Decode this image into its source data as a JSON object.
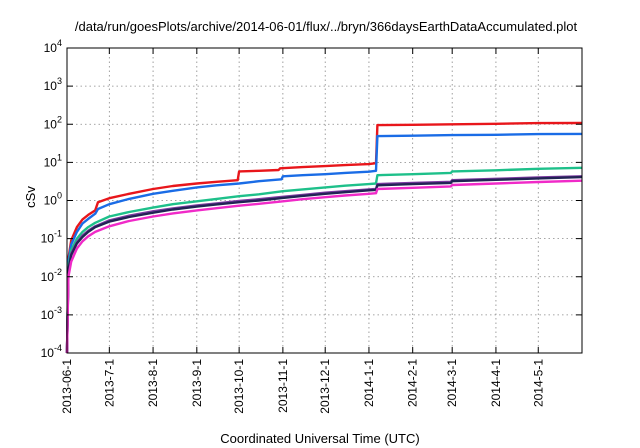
{
  "chart_data": {
    "type": "line",
    "title": "/data/run/goesPlots/archive/2014-06-01/flux/../bryn/366daysEarthDataAccumulated.plot",
    "xlabel": "Coordinated Universal Time (UTC)",
    "ylabel": "cSv",
    "y_scale": "log",
    "ylim": [
      0.0001,
      10000
    ],
    "xlim": [
      "2013-06-01",
      "2014-06-01"
    ],
    "grid": true,
    "legend": "none",
    "x_ticks": [
      "2013-06-1",
      "2013-7-1",
      "2013-8-1",
      "2013-9-1",
      "2013-10-1",
      "2013-11-1",
      "2013-12-1",
      "2014-1-1",
      "2014-2-1",
      "2014-3-1",
      "2014-4-1",
      "2014-5-1"
    ],
    "x_tick_dates": [
      "2013-06-01",
      "2013-07-01",
      "2013-08-01",
      "2013-09-01",
      "2013-10-01",
      "2013-11-01",
      "2013-12-01",
      "2014-01-01",
      "2014-02-01",
      "2014-03-01",
      "2014-04-01",
      "2014-05-01"
    ],
    "y_ticks": [
      {
        "value": 0.0001,
        "base": "10",
        "exp": "-4"
      },
      {
        "value": 0.001,
        "base": "10",
        "exp": "-3"
      },
      {
        "value": 0.01,
        "base": "10",
        "exp": "-2"
      },
      {
        "value": 0.1,
        "base": "10",
        "exp": "-1"
      },
      {
        "value": 1,
        "base": "10",
        "exp": "0"
      },
      {
        "value": 10,
        "base": "10",
        "exp": "1"
      },
      {
        "value": 100,
        "base": "10",
        "exp": "2"
      },
      {
        "value": 1000,
        "base": "10",
        "exp": "3"
      },
      {
        "value": 10000,
        "base": "10",
        "exp": "4"
      }
    ],
    "series": [
      {
        "color": "#e8161b",
        "points": [
          [
            "2013-06-01",
            0.0001
          ],
          [
            "2013-06-02",
            0.03
          ],
          [
            "2013-06-04",
            0.09
          ],
          [
            "2013-06-08",
            0.2
          ],
          [
            "2013-06-12",
            0.32
          ],
          [
            "2013-06-16",
            0.42
          ],
          [
            "2013-06-21",
            0.55
          ],
          [
            "2013-06-23",
            0.9
          ],
          [
            "2013-07-01",
            1.15
          ],
          [
            "2013-07-15",
            1.5
          ],
          [
            "2013-08-01",
            2.0
          ],
          [
            "2013-08-15",
            2.4
          ],
          [
            "2013-09-01",
            2.8
          ],
          [
            "2013-09-15",
            3.1
          ],
          [
            "2013-09-30",
            3.4
          ],
          [
            "2013-10-01",
            5.8
          ],
          [
            "2013-10-15",
            6.0
          ],
          [
            "2013-10-29",
            6.3
          ],
          [
            "2013-10-30",
            7.0
          ],
          [
            "2013-11-15",
            7.5
          ],
          [
            "2013-12-01",
            8.0
          ],
          [
            "2013-12-15",
            8.5
          ],
          [
            "2014-01-01",
            9.0
          ],
          [
            "2014-01-06",
            9.5
          ],
          [
            "2014-01-07",
            95
          ],
          [
            "2014-02-01",
            97
          ],
          [
            "2014-03-01",
            100
          ],
          [
            "2014-04-01",
            103
          ],
          [
            "2014-05-01",
            107
          ],
          [
            "2014-06-01",
            108
          ]
        ]
      },
      {
        "color": "#1a6ce6",
        "points": [
          [
            "2013-06-01",
            0.0001
          ],
          [
            "2013-06-02",
            0.025
          ],
          [
            "2013-06-04",
            0.07
          ],
          [
            "2013-06-08",
            0.15
          ],
          [
            "2013-06-12",
            0.25
          ],
          [
            "2013-06-16",
            0.33
          ],
          [
            "2013-06-21",
            0.45
          ],
          [
            "2013-06-23",
            0.6
          ],
          [
            "2013-07-01",
            0.8
          ],
          [
            "2013-07-15",
            1.1
          ],
          [
            "2013-08-01",
            1.5
          ],
          [
            "2013-08-15",
            1.8
          ],
          [
            "2013-09-01",
            2.2
          ],
          [
            "2013-09-15",
            2.5
          ],
          [
            "2013-10-01",
            2.8
          ],
          [
            "2013-10-15",
            3.2
          ],
          [
            "2013-10-31",
            3.6
          ],
          [
            "2013-11-01",
            4.3
          ],
          [
            "2013-11-15",
            4.6
          ],
          [
            "2013-12-01",
            4.9
          ],
          [
            "2013-12-15",
            5.3
          ],
          [
            "2014-01-01",
            5.7
          ],
          [
            "2014-01-06",
            6.0
          ],
          [
            "2014-01-07",
            49
          ],
          [
            "2014-02-01",
            50
          ],
          [
            "2014-03-01",
            52
          ],
          [
            "2014-04-01",
            53
          ],
          [
            "2014-05-01",
            55
          ],
          [
            "2014-06-01",
            56
          ]
        ]
      },
      {
        "color": "#1ec08a",
        "points": [
          [
            "2013-06-01",
            0.0001
          ],
          [
            "2013-06-02",
            0.02
          ],
          [
            "2013-06-04",
            0.05
          ],
          [
            "2013-06-08",
            0.1
          ],
          [
            "2013-06-12",
            0.15
          ],
          [
            "2013-06-16",
            0.2
          ],
          [
            "2013-06-21",
            0.26
          ],
          [
            "2013-07-01",
            0.38
          ],
          [
            "2013-07-15",
            0.5
          ],
          [
            "2013-08-01",
            0.65
          ],
          [
            "2013-08-15",
            0.8
          ],
          [
            "2013-09-01",
            0.95
          ],
          [
            "2013-09-15",
            1.1
          ],
          [
            "2013-10-01",
            1.3
          ],
          [
            "2013-10-15",
            1.45
          ],
          [
            "2013-11-01",
            1.75
          ],
          [
            "2013-11-15",
            1.95
          ],
          [
            "2013-12-01",
            2.2
          ],
          [
            "2013-12-15",
            2.45
          ],
          [
            "2014-01-01",
            2.7
          ],
          [
            "2014-01-06",
            2.8
          ],
          [
            "2014-01-07",
            4.6
          ],
          [
            "2014-02-01",
            4.9
          ],
          [
            "2014-02-28",
            5.3
          ],
          [
            "2014-03-01",
            5.8
          ],
          [
            "2014-04-01",
            6.2
          ],
          [
            "2014-05-01",
            6.8
          ],
          [
            "2014-06-01",
            7.2
          ]
        ]
      },
      {
        "color": "#7b3aa0",
        "points": [
          [
            "2013-06-01",
            0.0001
          ],
          [
            "2013-06-02",
            0.016
          ],
          [
            "2013-06-04",
            0.04
          ],
          [
            "2013-06-08",
            0.08
          ],
          [
            "2013-06-12",
            0.12
          ],
          [
            "2013-06-16",
            0.16
          ],
          [
            "2013-06-21",
            0.21
          ],
          [
            "2013-07-01",
            0.3
          ],
          [
            "2013-07-15",
            0.4
          ],
          [
            "2013-08-01",
            0.52
          ],
          [
            "2013-08-15",
            0.62
          ],
          [
            "2013-09-01",
            0.74
          ],
          [
            "2013-09-15",
            0.84
          ],
          [
            "2013-10-01",
            0.97
          ],
          [
            "2013-10-15",
            1.08
          ],
          [
            "2013-11-01",
            1.25
          ],
          [
            "2013-11-15",
            1.4
          ],
          [
            "2013-12-01",
            1.6
          ],
          [
            "2013-12-15",
            1.75
          ],
          [
            "2014-01-01",
            1.95
          ],
          [
            "2014-01-06",
            2.0
          ],
          [
            "2014-01-07",
            2.7
          ],
          [
            "2014-02-01",
            2.9
          ],
          [
            "2014-02-28",
            3.1
          ],
          [
            "2014-03-01",
            3.4
          ],
          [
            "2014-04-01",
            3.7
          ],
          [
            "2014-05-01",
            4.0
          ],
          [
            "2014-06-01",
            4.3
          ]
        ]
      },
      {
        "color": "#222255",
        "points": [
          [
            "2013-06-01",
            0.0001
          ],
          [
            "2013-06-02",
            0.015
          ],
          [
            "2013-06-04",
            0.037
          ],
          [
            "2013-06-08",
            0.075
          ],
          [
            "2013-06-12",
            0.11
          ],
          [
            "2013-06-16",
            0.15
          ],
          [
            "2013-06-21",
            0.2
          ],
          [
            "2013-07-01",
            0.28
          ],
          [
            "2013-07-15",
            0.37
          ],
          [
            "2013-08-01",
            0.48
          ],
          [
            "2013-08-15",
            0.58
          ],
          [
            "2013-09-01",
            0.69
          ],
          [
            "2013-09-15",
            0.79
          ],
          [
            "2013-10-01",
            0.9
          ],
          [
            "2013-10-15",
            1.0
          ],
          [
            "2013-11-01",
            1.17
          ],
          [
            "2013-11-15",
            1.32
          ],
          [
            "2013-12-01",
            1.5
          ],
          [
            "2013-12-15",
            1.65
          ],
          [
            "2014-01-01",
            1.85
          ],
          [
            "2014-01-06",
            1.9
          ],
          [
            "2014-01-07",
            2.5
          ],
          [
            "2014-02-01",
            2.7
          ],
          [
            "2014-02-28",
            2.9
          ],
          [
            "2014-03-01",
            3.2
          ],
          [
            "2014-04-01",
            3.5
          ],
          [
            "2014-05-01",
            3.8
          ],
          [
            "2014-06-01",
            4.1
          ]
        ]
      },
      {
        "color": "#f02ac8",
        "points": [
          [
            "2013-06-01",
            0.0001
          ],
          [
            "2013-06-02",
            0.01
          ],
          [
            "2013-06-04",
            0.025
          ],
          [
            "2013-06-08",
            0.055
          ],
          [
            "2013-06-12",
            0.085
          ],
          [
            "2013-06-16",
            0.115
          ],
          [
            "2013-06-21",
            0.15
          ],
          [
            "2013-07-01",
            0.21
          ],
          [
            "2013-07-15",
            0.29
          ],
          [
            "2013-08-01",
            0.38
          ],
          [
            "2013-08-15",
            0.46
          ],
          [
            "2013-09-01",
            0.55
          ],
          [
            "2013-09-15",
            0.63
          ],
          [
            "2013-10-01",
            0.73
          ],
          [
            "2013-10-15",
            0.82
          ],
          [
            "2013-11-01",
            0.95
          ],
          [
            "2013-11-15",
            1.08
          ],
          [
            "2013-12-01",
            1.22
          ],
          [
            "2013-12-15",
            1.35
          ],
          [
            "2014-01-01",
            1.5
          ],
          [
            "2014-01-06",
            1.55
          ],
          [
            "2014-01-07",
            2.0
          ],
          [
            "2014-02-01",
            2.15
          ],
          [
            "2014-02-28",
            2.35
          ],
          [
            "2014-03-01",
            2.55
          ],
          [
            "2014-04-01",
            2.8
          ],
          [
            "2014-05-01",
            3.05
          ],
          [
            "2014-06-01",
            3.3
          ]
        ]
      }
    ]
  }
}
